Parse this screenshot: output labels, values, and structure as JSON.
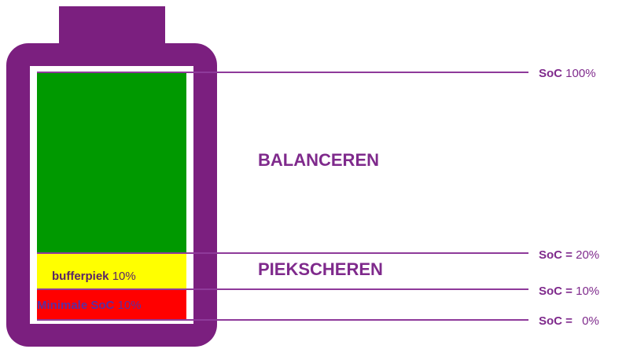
{
  "zones": {
    "balanceren": "BALANCEREN",
    "piekscheren": "PIEKSCHEREN"
  },
  "segments": [
    {
      "name": "bufferpiek",
      "value": "10%"
    },
    {
      "name": "Minimale SoC",
      "value": "10%"
    }
  ],
  "levels": [
    {
      "label": "SoC",
      "value": "100%"
    },
    {
      "label": "SoC =",
      "value": "20%"
    },
    {
      "label": "SoC =",
      "value": "10%"
    },
    {
      "label": "SoC =",
      "value": "0%"
    }
  ]
}
